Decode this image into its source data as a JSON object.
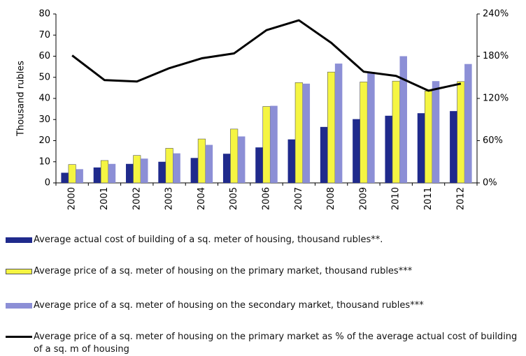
{
  "chart_data": {
    "type": "bar",
    "ylabel": "Thousand rubles",
    "categories": [
      "2000",
      "2001",
      "2002",
      "2003",
      "2004",
      "2005",
      "2006",
      "2007",
      "2008",
      "2009",
      "2010",
      "2011",
      "2012"
    ],
    "series": [
      {
        "name": "Average actual cost of building of a sq. meter of housing, thousand rubles**.",
        "type": "bar",
        "color": "#1f2a8c",
        "values": [
          4.8,
          7.3,
          9,
          10,
          11.8,
          13.8,
          16.8,
          20.6,
          26.5,
          30.2,
          31.8,
          33,
          34
        ]
      },
      {
        "name": "Average price of a sq. meter of housing on the primary market, thousand rubles***",
        "type": "bar",
        "color": "#f5f542",
        "values": [
          8.7,
          10.6,
          13,
          16.4,
          20.8,
          25.5,
          36.2,
          47.5,
          52.5,
          47.8,
          48.2,
          43.5,
          48
        ]
      },
      {
        "name": "Average price of a sq. meter of housing on the secondary market, thousand rubles***",
        "type": "bar",
        "color": "#8c8fd6",
        "values": [
          6.5,
          9,
          11.5,
          14,
          18,
          22,
          36.5,
          47,
          56.5,
          52.5,
          60,
          48.2,
          56.3
        ]
      },
      {
        "name": "Average price of a sq. meter of housing on the primary market as % of the average actual cost of building of a sq. m of housing",
        "type": "line",
        "axis": "y2",
        "color": "#000000",
        "values": [
          181,
          146,
          144,
          163,
          177,
          184,
          217,
          231,
          199,
          158,
          152,
          131,
          141
        ]
      }
    ],
    "ylim": [
      0,
      80
    ],
    "yticks": [
      0,
      10,
      20,
      30,
      40,
      50,
      60,
      70,
      80
    ],
    "y2lim": [
      0,
      240
    ],
    "y2ticks": [
      {
        "value": 0,
        "label": "0%"
      },
      {
        "value": 60,
        "label": "60%"
      },
      {
        "value": 120,
        "label": "120%"
      },
      {
        "value": 180,
        "label": "180%"
      },
      {
        "value": 240,
        "label": "240%"
      }
    ],
    "grid": false
  }
}
